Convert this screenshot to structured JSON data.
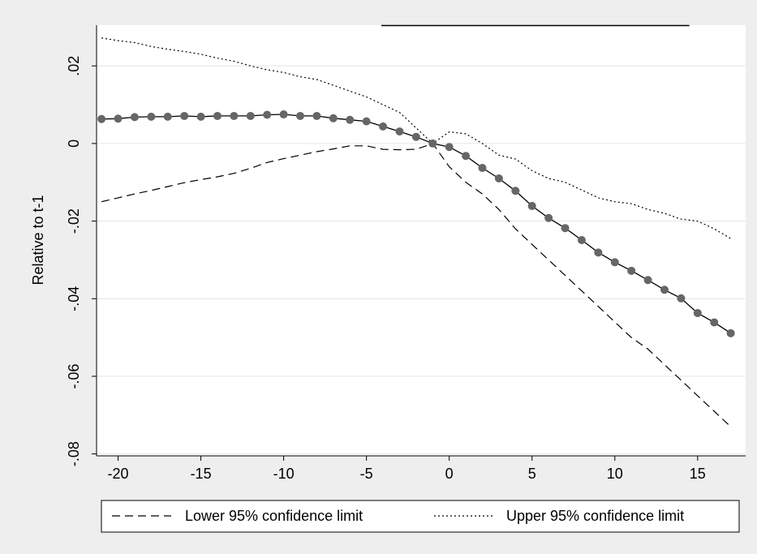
{
  "chart_data": {
    "type": "line",
    "title": "",
    "xlabel": "",
    "ylabel": "Relative to t-1",
    "xlim": [
      -21.3,
      17.9
    ],
    "ylim": [
      -0.0805,
      0.0305
    ],
    "grid": true,
    "x_ticks": [
      -20,
      -15,
      -10,
      -5,
      0,
      5,
      10,
      15
    ],
    "x_tick_labels": [
      "-20",
      "-15",
      "-10",
      "-5",
      "0",
      "5",
      "10",
      "15"
    ],
    "y_ticks": [
      0.02,
      0,
      -0.02,
      -0.04,
      -0.06,
      -0.08
    ],
    "y_tick_labels": [
      ".02",
      "0",
      "-.02",
      "-.04",
      "-.06",
      "-.08"
    ],
    "legend": {
      "position": "bottom",
      "entries": [
        "Lower 95% confidence limit",
        "Upper 95% confidence limit"
      ]
    },
    "colors": {
      "plot_bg": "#ffffff",
      "outer_bg": "#eeeeee",
      "grid": "#e6e6e6",
      "line": "#000000",
      "marker": "#666666"
    },
    "series": [
      {
        "role": "estimate",
        "style": "solid-with-markers",
        "x": [
          -21,
          -20,
          -19,
          -18,
          -17,
          -16,
          -15,
          -14,
          -13,
          -12,
          -11,
          -10,
          -9,
          -8,
          -7,
          -6,
          -5,
          -4,
          -3,
          -2,
          -1,
          0,
          1,
          2,
          3,
          4,
          5,
          6,
          7,
          8,
          9,
          10,
          11,
          12,
          13,
          14,
          15,
          16,
          17
        ],
        "y": [
          0.0063,
          0.0064,
          0.0068,
          0.0069,
          0.0069,
          0.0071,
          0.0069,
          0.0071,
          0.0071,
          0.0071,
          0.0074,
          0.0075,
          0.0071,
          0.0071,
          0.0065,
          0.0061,
          0.0057,
          0.0044,
          0.0031,
          0.0017,
          0.0,
          -0.0009,
          -0.0032,
          -0.0063,
          -0.009,
          -0.0122,
          -0.0161,
          -0.0192,
          -0.0218,
          -0.0249,
          -0.0281,
          -0.0306,
          -0.0328,
          -0.0352,
          -0.0377,
          -0.0399,
          -0.0437,
          -0.0461,
          -0.0489
        ]
      },
      {
        "name": "Lower 95% confidence limit",
        "style": "dashed",
        "x": [
          -21,
          -20,
          -19,
          -18,
          -17,
          -16,
          -15,
          -14,
          -13,
          -12,
          -11,
          -10,
          -9,
          -8,
          -7,
          -6,
          -5,
          -4,
          -3,
          -2,
          -1,
          0,
          1,
          2,
          3,
          4,
          5,
          6,
          7,
          8,
          9,
          10,
          11,
          12,
          13,
          14,
          15,
          16,
          17
        ],
        "y": [
          -0.015,
          -0.014,
          -0.013,
          -0.0121,
          -0.0111,
          -0.0101,
          -0.0093,
          -0.0086,
          -0.0077,
          -0.0064,
          -0.0049,
          -0.0039,
          -0.003,
          -0.0021,
          -0.0014,
          -0.0006,
          -0.0006,
          -0.0015,
          -0.0016,
          -0.0015,
          0.0,
          -0.006,
          -0.01,
          -0.013,
          -0.017,
          -0.022,
          -0.026,
          -0.03,
          -0.034,
          -0.038,
          -0.042,
          -0.046,
          -0.05,
          -0.053,
          -0.057,
          -0.061,
          -0.065,
          -0.069,
          -0.073
        ]
      },
      {
        "name": "Upper 95% confidence limit",
        "style": "dotted",
        "x": [
          -21,
          -20,
          -19,
          -18,
          -17,
          -16,
          -15,
          -14,
          -13,
          -12,
          -11,
          -10,
          -9,
          -8,
          -7,
          -6,
          -5,
          -4,
          -3,
          -2,
          -1,
          0,
          1,
          2,
          3,
          4,
          5,
          6,
          7,
          8,
          9,
          10,
          11,
          12,
          13,
          14,
          15,
          16,
          17
        ],
        "y": [
          0.0272,
          0.0265,
          0.026,
          0.025,
          0.0243,
          0.0237,
          0.023,
          0.022,
          0.0212,
          0.02,
          0.019,
          0.0183,
          0.0172,
          0.0165,
          0.015,
          0.0135,
          0.012,
          0.01,
          0.008,
          0.004,
          0.0,
          0.003,
          0.0025,
          0.0,
          -0.003,
          -0.004,
          -0.007,
          -0.009,
          -0.01,
          -0.012,
          -0.014,
          -0.015,
          -0.0155,
          -0.017,
          -0.018,
          -0.0195,
          -0.02,
          -0.022,
          -0.0245
        ]
      }
    ]
  }
}
